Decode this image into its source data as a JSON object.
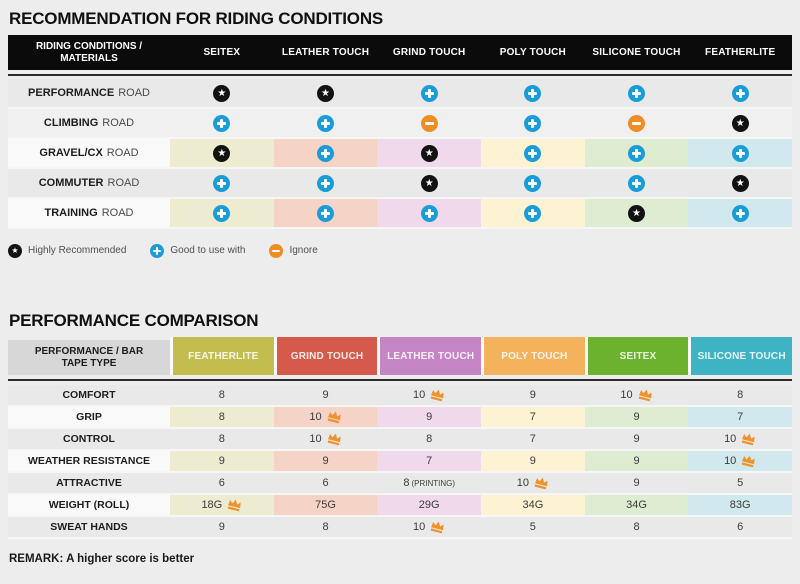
{
  "ui": {
    "colors": {
      "header_bar": "#0b0b0b",
      "icon_blue": "#1a9cd8",
      "icon_orange": "#ee8d26",
      "icon_black": "#121212",
      "crown_orange": "#f0922b",
      "corner_header_bg": "#d8d7d7",
      "column_colors": [
        "#c3bd4f",
        "#d65a4b",
        "#c584c3",
        "#f4b25d",
        "#6cb22e",
        "#3eb3c3"
      ],
      "column_tints": [
        "#edecd1",
        "#f6d3c7",
        "#f0d9eb",
        "#fdf3d3",
        "#deecd2",
        "#d0e8ee"
      ]
    }
  },
  "chart_data": [
    {
      "type": "table",
      "title": "RECOMMENDATION FOR RIDING CONDITIONS",
      "corner_label": "RIDING CONDITIONS / MATERIALS",
      "columns": [
        "SEITEX",
        "LEATHER TOUCH",
        "GRIND TOUCH",
        "POLY TOUCH",
        "SILICONE TOUCH",
        "FEATHERLITE"
      ],
      "rows": [
        {
          "label": "PERFORMANCE ROAD",
          "tinted": false,
          "light": false,
          "ratings": [
            "star",
            "star",
            "plus",
            "plus",
            "plus",
            "plus"
          ]
        },
        {
          "label": "CLIMBING ROAD",
          "tinted": false,
          "light": true,
          "ratings": [
            "plus",
            "plus",
            "minus",
            "plus",
            "minus",
            "star"
          ]
        },
        {
          "label": "GRAVEL/CX ROAD",
          "tinted": true,
          "light": false,
          "ratings": [
            "star",
            "plus",
            "star",
            "plus",
            "plus",
            "plus"
          ]
        },
        {
          "label": "COMMUTER ROAD",
          "tinted": false,
          "light": false,
          "ratings": [
            "plus",
            "plus",
            "star",
            "plus",
            "plus",
            "star"
          ]
        },
        {
          "label": "TRAINING ROAD",
          "tinted": true,
          "light": false,
          "ratings": [
            "plus",
            "plus",
            "plus",
            "plus",
            "star",
            "plus"
          ]
        }
      ],
      "legend": [
        {
          "icon": "star",
          "label": "Highly Recommended"
        },
        {
          "icon": "plus",
          "label": "Good to use with"
        },
        {
          "icon": "minus",
          "label": "Ignore"
        }
      ]
    },
    {
      "type": "table",
      "title": "PERFORMANCE COMPARISON",
      "corner_label": "PERFORMANCE / BAR TAPE TYPE",
      "columns": [
        "FEATHERLITE",
        "GRIND TOUCH",
        "LEATHER TOUCH",
        "POLY TOUCH",
        "SEITEX",
        "SILICONE TOUCH"
      ],
      "rows": [
        {
          "label": "COMFORT",
          "tinted": false,
          "values": [
            "8",
            "9",
            "10",
            "9",
            "10",
            "8"
          ],
          "crowns": [
            false,
            false,
            true,
            false,
            true,
            false
          ],
          "notes": [
            null,
            null,
            null,
            null,
            null,
            null
          ]
        },
        {
          "label": "GRIP",
          "tinted": true,
          "values": [
            "8",
            "10",
            "9",
            "7",
            "9",
            "7"
          ],
          "crowns": [
            false,
            true,
            false,
            false,
            false,
            false
          ],
          "notes": [
            null,
            null,
            null,
            null,
            null,
            null
          ]
        },
        {
          "label": "CONTROL",
          "tinted": false,
          "values": [
            "8",
            "10",
            "8",
            "7",
            "9",
            "10"
          ],
          "crowns": [
            false,
            true,
            false,
            false,
            false,
            true
          ],
          "notes": [
            null,
            null,
            null,
            null,
            null,
            null
          ]
        },
        {
          "label": "WEATHER RESISTANCE",
          "tinted": true,
          "values": [
            "9",
            "9",
            "7",
            "9",
            "9",
            "10"
          ],
          "crowns": [
            false,
            false,
            false,
            false,
            false,
            true
          ],
          "notes": [
            null,
            null,
            null,
            null,
            null,
            null
          ]
        },
        {
          "label": "ATTRACTIVE",
          "tinted": false,
          "values": [
            "6",
            "6",
            "8",
            "10",
            "9",
            "5"
          ],
          "crowns": [
            false,
            false,
            false,
            true,
            false,
            false
          ],
          "notes": [
            null,
            null,
            "(PRINTING)",
            null,
            null,
            null
          ]
        },
        {
          "label": "WEIGHT (ROLL)",
          "tinted": true,
          "values": [
            "18G",
            "75G",
            "29G",
            "34G",
            "34G",
            "83G"
          ],
          "crowns": [
            true,
            false,
            false,
            false,
            false,
            false
          ],
          "notes": [
            null,
            null,
            null,
            null,
            null,
            null
          ]
        },
        {
          "label": "SWEAT HANDS",
          "tinted": false,
          "values": [
            "9",
            "8",
            "10",
            "5",
            "8",
            "6"
          ],
          "crowns": [
            false,
            false,
            true,
            false,
            false,
            false
          ],
          "notes": [
            null,
            null,
            null,
            null,
            null,
            null
          ]
        }
      ],
      "remark": "REMARK: A higher score is better"
    }
  ]
}
